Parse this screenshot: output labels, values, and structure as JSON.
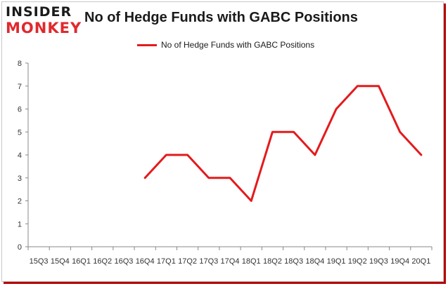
{
  "logo": {
    "top": "INSIDER",
    "bottom": "MONKEY"
  },
  "chart_data": {
    "type": "line",
    "title": "No of Hedge Funds with GABC Positions",
    "legend_position": "top-center",
    "grid": false,
    "categories": [
      "15Q3",
      "15Q4",
      "16Q1",
      "16Q2",
      "16Q3",
      "16Q4",
      "17Q1",
      "17Q2",
      "17Q3",
      "17Q4",
      "18Q1",
      "18Q2",
      "18Q3",
      "18Q4",
      "19Q1",
      "19Q2",
      "19Q3",
      "19Q4",
      "20Q1"
    ],
    "series": [
      {
        "name": "No of Hedge Funds with GABC Positions",
        "color": "#e41a1c",
        "values": [
          null,
          null,
          null,
          null,
          null,
          3,
          4,
          4,
          3,
          3,
          2,
          5,
          5,
          4,
          6,
          7,
          7,
          5,
          4
        ]
      }
    ],
    "ylim": [
      0,
      8
    ],
    "yticks": [
      0,
      1,
      2,
      3,
      4,
      5,
      6,
      7,
      8
    ]
  }
}
